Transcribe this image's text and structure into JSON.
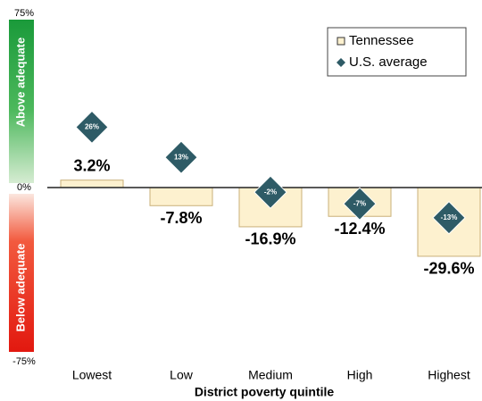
{
  "chart_data": {
    "type": "bar",
    "categories": [
      "Lowest",
      "Low",
      "Medium",
      "High",
      "Highest"
    ],
    "series": [
      {
        "name": "Tennessee",
        "color": "#fdf1cf",
        "edge_color": "#c9b07a",
        "marker": "bar",
        "values": [
          3.2,
          -7.8,
          -16.9,
          -12.4,
          -29.6
        ],
        "value_labels": [
          "3.2%",
          "-7.8%",
          "-16.9%",
          "-12.4%",
          "-29.6%"
        ]
      },
      {
        "name": "U.S. average",
        "color": "#2e5b66",
        "marker": "diamond",
        "values": [
          26,
          13,
          -2,
          -7,
          -13
        ],
        "value_labels": [
          "26%",
          "13%",
          "-2%",
          "-7%",
          "-13%"
        ]
      }
    ],
    "ylim": [
      -75,
      75
    ],
    "yticks": [
      {
        "value": 75,
        "label": "75%"
      },
      {
        "value": 0,
        "label": "0%"
      },
      {
        "value": -75,
        "label": "-75%"
      }
    ],
    "y_bands": [
      "Above adequate",
      "Below adequate"
    ],
    "xlabel": "District poverty quintile",
    "legend": "upper right"
  }
}
